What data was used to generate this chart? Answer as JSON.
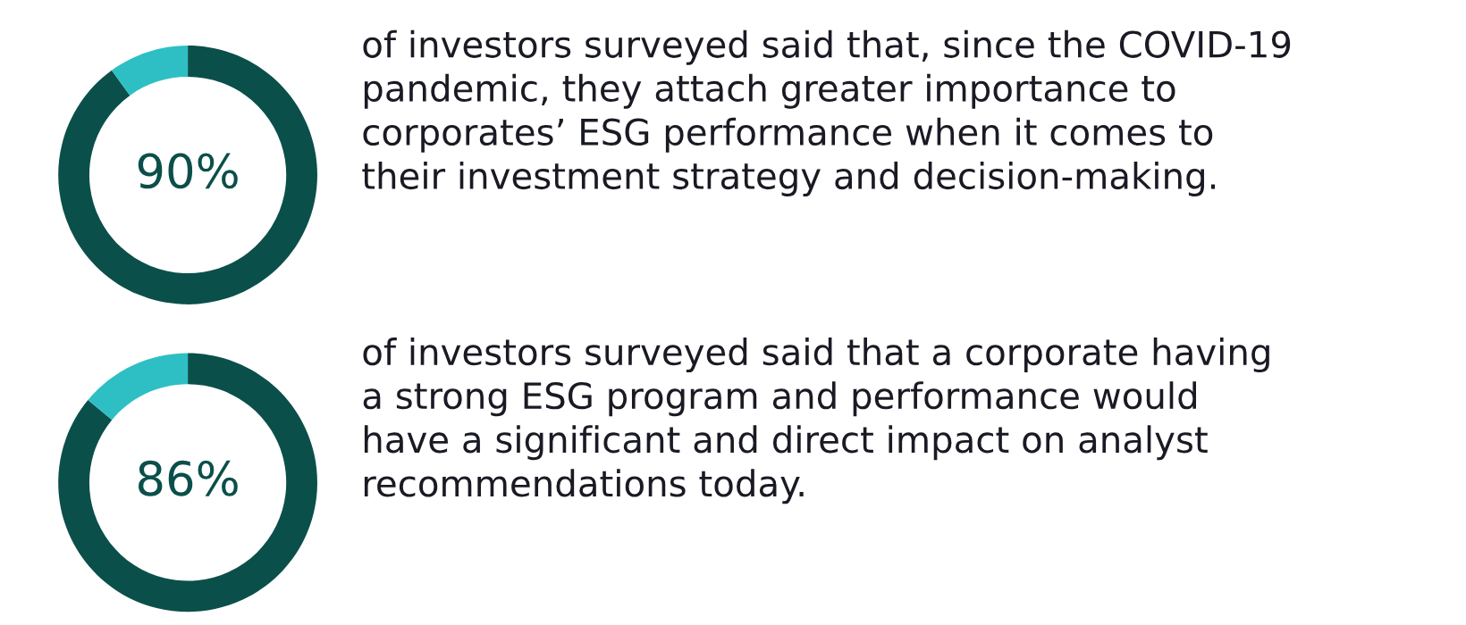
{
  "chart_data": [
    {
      "type": "donut",
      "categories": [
        null,
        null
      ],
      "values": [
        90,
        10
      ],
      "colors": [
        "#0b4f4a",
        "#2ebfc4"
      ],
      "value_labels": [
        "90%",
        null
      ],
      "annotations": [
        "of investors surveyed said that, since the COVID-19\npandemic, they attach greater importance to\ncorporates’ ESG performance when it comes to\ntheir investment strategy and decision-making."
      ]
    },
    {
      "type": "donut",
      "categories": [
        null,
        null
      ],
      "values": [
        86,
        14
      ],
      "colors": [
        "#0b4f4a",
        "#2ebfc4"
      ],
      "value_labels": [
        "86%",
        null
      ],
      "annotations": [
        "of investors surveyed said that a corporate having\na strong ESG program and performance would\nhave a significant and direct impact on analyst\nrecommendations today."
      ]
    }
  ]
}
